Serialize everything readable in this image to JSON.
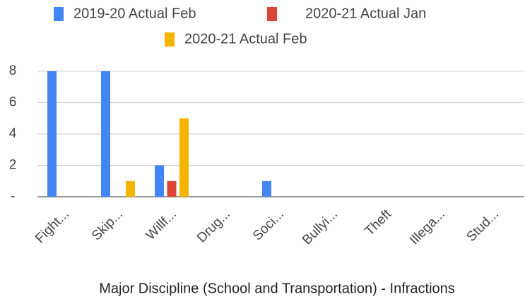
{
  "chart_data": {
    "type": "bar",
    "title": "Major Discipline (School and Transportation) - Infractions",
    "categories": [
      "Fight...",
      "Skip...",
      "Willf...",
      "Drug...",
      "Soci...",
      "Bullyi...",
      "Theft",
      "Illega...",
      "Stud..."
    ],
    "series": [
      {
        "name": "2019-20 Actual Feb",
        "color": "#4285f4",
        "values": [
          8,
          8,
          2,
          0,
          1,
          0,
          0,
          0,
          0
        ]
      },
      {
        "name": "2020-21 Actual Jan",
        "color": "#db4437",
        "values": [
          0,
          0,
          1,
          0,
          0,
          0,
          0,
          0,
          0
        ]
      },
      {
        "name": "2020-21 Actual Feb",
        "color": "#f4b400",
        "values": [
          0,
          1,
          5,
          0,
          0,
          0,
          0,
          0,
          0
        ]
      }
    ],
    "ylim": [
      0,
      8
    ],
    "yticks": [
      {
        "value": 0,
        "label": "-"
      },
      2,
      4,
      6,
      8
    ],
    "grid": true,
    "legend": "top"
  }
}
